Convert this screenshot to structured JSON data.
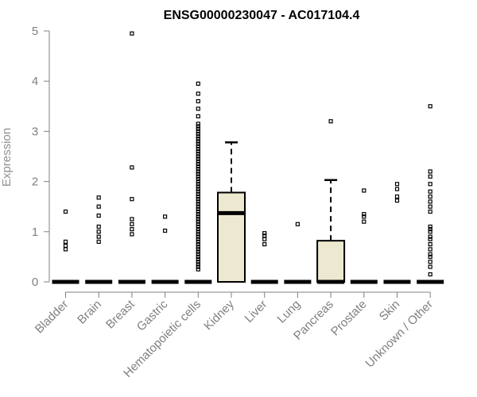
{
  "chart_data": {
    "type": "box",
    "title": "ENSG00000230047 - AC017104.4",
    "xlabel": "",
    "ylabel": "Expression",
    "ylim": [
      0,
      5
    ],
    "yticks": [
      "0",
      "1",
      "2",
      "3",
      "4",
      "5"
    ],
    "grid": false,
    "colors": {
      "box_fill": "#EDE8D0",
      "box_stroke": "#000000",
      "axis": "#808080",
      "outlier": "#000000"
    },
    "categories": [
      "Bladder",
      "Brain",
      "Breast",
      "Gastric",
      "Hematopoietic cells",
      "Kidney",
      "Liver",
      "Lung",
      "Pancreas",
      "Prostate",
      "Skin",
      "Unknown / Other"
    ],
    "boxes": [
      {
        "category": "Bladder",
        "min": 0,
        "q1": 0,
        "median": 0,
        "q3": 0,
        "max": 0,
        "outliers": [
          0.65,
          0.72,
          0.8,
          1.4
        ]
      },
      {
        "category": "Brain",
        "min": 0,
        "q1": 0,
        "median": 0,
        "q3": 0,
        "max": 0,
        "outliers": [
          0.8,
          0.9,
          1.0,
          1.1,
          1.32,
          1.5,
          1.68
        ]
      },
      {
        "category": "Breast",
        "min": 0,
        "q1": 0,
        "median": 0,
        "q3": 0,
        "max": 0,
        "outliers": [
          0.95,
          1.05,
          1.15,
          1.25,
          1.65,
          2.28,
          4.95
        ]
      },
      {
        "category": "Gastric",
        "min": 0,
        "q1": 0,
        "median": 0,
        "q3": 0,
        "max": 0,
        "outliers": [
          1.02,
          1.3
        ]
      },
      {
        "category": "Hematopoietic cells",
        "min": 0,
        "q1": 0,
        "median": 0,
        "q3": 0,
        "max": 0,
        "outliers": [
          0.25,
          0.3,
          0.35,
          0.4,
          0.45,
          0.5,
          0.55,
          0.6,
          0.65,
          0.7,
          0.75,
          0.8,
          0.85,
          0.9,
          0.95,
          1.0,
          1.05,
          1.1,
          1.15,
          1.2,
          1.25,
          1.3,
          1.35,
          1.4,
          1.45,
          1.5,
          1.55,
          1.6,
          1.65,
          1.7,
          1.75,
          1.8,
          1.85,
          1.9,
          1.95,
          2.0,
          2.05,
          2.1,
          2.15,
          2.2,
          2.25,
          2.3,
          2.35,
          2.4,
          2.45,
          2.5,
          2.55,
          2.6,
          2.65,
          2.7,
          2.75,
          2.8,
          2.85,
          2.9,
          2.95,
          3.0,
          3.05,
          3.1,
          3.15,
          3.3,
          3.45,
          3.6,
          3.75,
          3.95
        ]
      },
      {
        "category": "Kidney",
        "min": 0,
        "q1": 0,
        "median": 1.37,
        "q3": 1.78,
        "max": 2.78,
        "outliers": []
      },
      {
        "category": "Liver",
        "min": 0,
        "q1": 0,
        "median": 0,
        "q3": 0,
        "max": 0,
        "outliers": [
          0.75,
          0.85,
          0.92,
          0.97
        ]
      },
      {
        "category": "Lung",
        "min": 0,
        "q1": 0,
        "median": 0,
        "q3": 0,
        "max": 0,
        "outliers": [
          1.15
        ]
      },
      {
        "category": "Pancreas",
        "min": 0,
        "q1": 0,
        "median": 0,
        "q3": 0.82,
        "max": 2.03,
        "outliers": [
          3.2
        ]
      },
      {
        "category": "Prostate",
        "min": 0,
        "q1": 0,
        "median": 0,
        "q3": 0,
        "max": 0,
        "outliers": [
          1.2,
          1.3,
          1.35,
          1.82
        ]
      },
      {
        "category": "Skin",
        "min": 0,
        "q1": 0,
        "median": 0,
        "q3": 0,
        "max": 0,
        "outliers": [
          1.62,
          1.7,
          1.85,
          1.95
        ]
      },
      {
        "category": "Unknown / Other",
        "min": 0,
        "q1": 0,
        "median": 0,
        "q3": 0,
        "max": 0,
        "outliers": [
          0.15,
          0.3,
          0.4,
          0.5,
          0.55,
          0.65,
          0.75,
          0.85,
          0.9,
          1.0,
          1.05,
          1.1,
          1.4,
          1.5,
          1.6,
          1.7,
          1.8,
          1.95,
          2.1,
          2.2,
          3.5
        ]
      }
    ]
  }
}
